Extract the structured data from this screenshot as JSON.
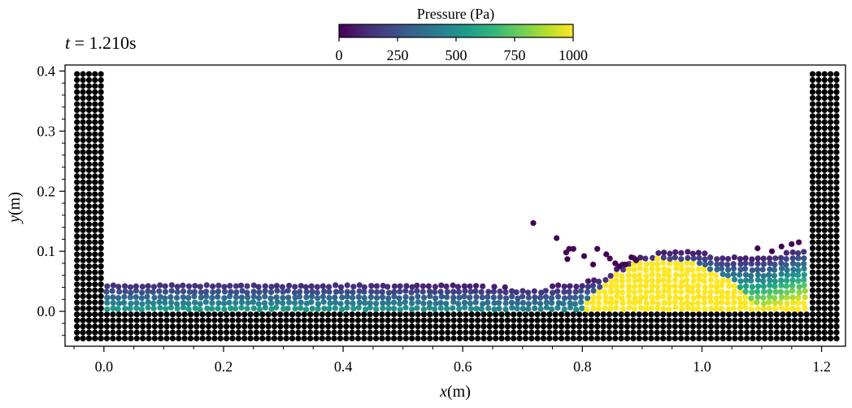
{
  "chart_data": {
    "type": "scatter",
    "time_label": {
      "var": "t",
      "eq": " = ",
      "value": "1.210s"
    },
    "xlabel": {
      "var": "x",
      "unit": "(m)"
    },
    "ylabel": {
      "var": "y",
      "unit": "(m)"
    },
    "xlim": [
      -0.065,
      1.24
    ],
    "ylim": [
      -0.058,
      0.41
    ],
    "xticks": [
      0.0,
      0.2,
      0.4,
      0.6,
      0.8,
      1.0,
      1.2
    ],
    "xtick_labels": [
      "0.0",
      "0.2",
      "0.4",
      "0.6",
      "0.8",
      "1.0",
      "1.2"
    ],
    "yticks": [
      0.0,
      0.1,
      0.2,
      0.3,
      0.4
    ],
    "ytick_labels": [
      "0.0",
      "0.1",
      "0.2",
      "0.3",
      "0.4"
    ],
    "colorbar": {
      "label": "Pressure (Pa)",
      "colormap": "viridis",
      "min": 0,
      "max": 1000,
      "ticks": [
        0,
        250,
        500,
        750,
        1000
      ],
      "tick_labels": [
        "0",
        "250",
        "500",
        "750",
        "1000"
      ],
      "stops": [
        "#440154",
        "#482878",
        "#3e4a89",
        "#31688e",
        "#26828e",
        "#1f9e89",
        "#35b779",
        "#6ece58",
        "#b5de2b",
        "#fde725"
      ]
    },
    "particle_spacing": 0.01,
    "boundary": {
      "color": "#000000",
      "left_wall": {
        "x_range": [
          -0.045,
          -0.005
        ],
        "y_range": [
          -0.045,
          0.395
        ]
      },
      "right_wall": {
        "x_range": [
          1.185,
          1.225
        ],
        "y_range": [
          -0.045,
          0.395
        ]
      },
      "floor": {
        "x_range": [
          -0.045,
          1.225
        ],
        "y_range": [
          -0.045,
          -0.005
        ]
      }
    },
    "fluid": {
      "x_range": [
        0.005,
        1.175
      ],
      "surface_profile": [
        [
          0.0,
          0.052
        ],
        [
          0.2,
          0.052
        ],
        [
          0.4,
          0.051
        ],
        [
          0.6,
          0.047
        ],
        [
          0.72,
          0.043
        ],
        [
          0.79,
          0.048
        ],
        [
          0.84,
          0.063
        ],
        [
          0.88,
          0.09
        ],
        [
          0.93,
          0.103
        ],
        [
          1.0,
          0.103
        ],
        [
          1.05,
          0.093
        ],
        [
          1.1,
          0.093
        ],
        [
          1.15,
          0.105
        ],
        [
          1.18,
          0.112
        ]
      ],
      "high_pressure_zone": {
        "x_range": [
          0.8,
          1.1
        ],
        "peak_x": 0.93,
        "peak_height": 0.088,
        "pressure": 1000
      },
      "splash_particles": [
        [
          0.718,
          0.147
        ],
        [
          0.757,
          0.122
        ],
        [
          0.773,
          0.098
        ],
        [
          0.778,
          0.104
        ],
        [
          0.775,
          0.087
        ],
        [
          0.785,
          0.104
        ],
        [
          0.803,
          0.092
        ],
        [
          0.818,
          0.078
        ],
        [
          0.825,
          0.104
        ],
        [
          0.84,
          0.095
        ],
        [
          0.846,
          0.088
        ],
        [
          0.855,
          0.08
        ],
        [
          0.862,
          0.075
        ],
        [
          0.872,
          0.078
        ],
        [
          0.882,
          0.09
        ],
        [
          0.89,
          0.085
        ],
        [
          1.093,
          0.105
        ],
        [
          1.117,
          0.1
        ],
        [
          1.133,
          0.108
        ],
        [
          1.15,
          0.112
        ],
        [
          1.162,
          0.115
        ]
      ]
    }
  }
}
